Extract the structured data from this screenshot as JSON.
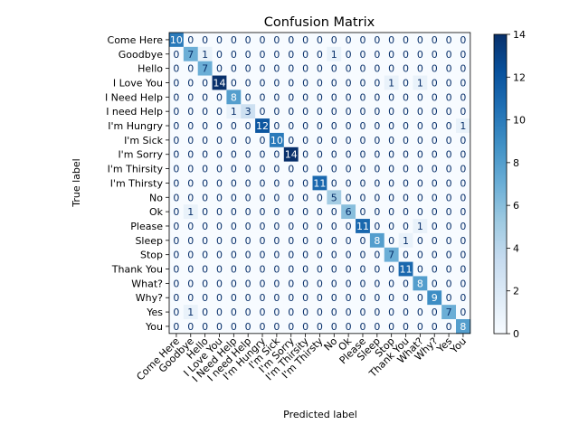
{
  "chart_data": {
    "type": "heatmap",
    "title": "Confusion Matrix",
    "xlabel": "Predicted label",
    "ylabel": "True label",
    "labels": [
      "Come Here",
      "Goodbye",
      "Hello",
      "I Love You",
      "I Need Help",
      "I need Help",
      "I'm Hungry",
      "I'm Sick",
      "I'm Sorry",
      "I'm Thirsity",
      "I'm Thirsty",
      "No",
      "Ok",
      "Please",
      "Sleep",
      "Stop",
      "Thank You",
      "What?",
      "Why?",
      "Yes",
      "You"
    ],
    "matrix": [
      [
        10,
        0,
        0,
        0,
        0,
        0,
        0,
        0,
        0,
        0,
        0,
        0,
        0,
        0,
        0,
        0,
        0,
        0,
        0,
        0,
        0
      ],
      [
        0,
        7,
        1,
        0,
        0,
        0,
        0,
        0,
        0,
        0,
        0,
        1,
        0,
        0,
        0,
        0,
        0,
        0,
        0,
        0,
        0
      ],
      [
        0,
        0,
        7,
        0,
        0,
        0,
        0,
        0,
        0,
        0,
        0,
        0,
        0,
        0,
        0,
        0,
        0,
        0,
        0,
        0,
        0
      ],
      [
        0,
        0,
        0,
        14,
        0,
        0,
        0,
        0,
        0,
        0,
        0,
        0,
        0,
        0,
        0,
        1,
        0,
        1,
        0,
        0,
        0
      ],
      [
        0,
        0,
        0,
        0,
        8,
        0,
        0,
        0,
        0,
        0,
        0,
        0,
        0,
        0,
        0,
        0,
        0,
        0,
        0,
        0,
        0
      ],
      [
        0,
        0,
        0,
        0,
        1,
        3,
        0,
        0,
        0,
        0,
        0,
        0,
        0,
        0,
        0,
        0,
        0,
        0,
        0,
        0,
        0
      ],
      [
        0,
        0,
        0,
        0,
        0,
        0,
        12,
        0,
        0,
        0,
        0,
        0,
        0,
        0,
        0,
        0,
        0,
        0,
        0,
        0,
        1
      ],
      [
        0,
        0,
        0,
        0,
        0,
        0,
        0,
        10,
        0,
        0,
        0,
        0,
        0,
        0,
        0,
        0,
        0,
        0,
        0,
        0,
        0
      ],
      [
        0,
        0,
        0,
        0,
        0,
        0,
        0,
        0,
        14,
        0,
        0,
        0,
        0,
        0,
        0,
        0,
        0,
        0,
        0,
        0,
        0
      ],
      [
        0,
        0,
        0,
        0,
        0,
        0,
        0,
        0,
        0,
        0,
        0,
        0,
        0,
        0,
        0,
        0,
        0,
        0,
        0,
        0,
        0
      ],
      [
        0,
        0,
        0,
        0,
        0,
        0,
        0,
        0,
        0,
        0,
        11,
        0,
        0,
        0,
        0,
        0,
        0,
        0,
        0,
        0,
        0
      ],
      [
        0,
        0,
        0,
        0,
        0,
        0,
        0,
        0,
        0,
        0,
        0,
        5,
        0,
        0,
        0,
        0,
        0,
        0,
        0,
        0,
        0
      ],
      [
        0,
        1,
        0,
        0,
        0,
        0,
        0,
        0,
        0,
        0,
        0,
        0,
        6,
        0,
        0,
        0,
        0,
        0,
        0,
        0,
        0
      ],
      [
        0,
        0,
        0,
        0,
        0,
        0,
        0,
        0,
        0,
        0,
        0,
        0,
        0,
        11,
        0,
        0,
        0,
        1,
        0,
        0,
        0
      ],
      [
        0,
        0,
        0,
        0,
        0,
        0,
        0,
        0,
        0,
        0,
        0,
        0,
        0,
        0,
        8,
        0,
        1,
        0,
        0,
        0,
        0
      ],
      [
        0,
        0,
        0,
        0,
        0,
        0,
        0,
        0,
        0,
        0,
        0,
        0,
        0,
        0,
        0,
        7,
        0,
        0,
        0,
        0,
        0
      ],
      [
        0,
        0,
        0,
        0,
        0,
        0,
        0,
        0,
        0,
        0,
        0,
        0,
        0,
        0,
        0,
        0,
        11,
        0,
        0,
        0,
        0
      ],
      [
        0,
        0,
        0,
        0,
        0,
        0,
        0,
        0,
        0,
        0,
        0,
        0,
        0,
        0,
        0,
        0,
        0,
        8,
        0,
        0,
        0
      ],
      [
        0,
        0,
        0,
        0,
        0,
        0,
        0,
        0,
        0,
        0,
        0,
        0,
        0,
        0,
        0,
        0,
        0,
        0,
        9,
        0,
        0
      ],
      [
        0,
        1,
        0,
        0,
        0,
        0,
        0,
        0,
        0,
        0,
        0,
        0,
        0,
        0,
        0,
        0,
        0,
        0,
        0,
        7,
        0
      ],
      [
        0,
        0,
        0,
        0,
        0,
        0,
        0,
        0,
        0,
        0,
        0,
        0,
        0,
        0,
        0,
        0,
        0,
        0,
        0,
        0,
        8
      ]
    ],
    "colorbar": {
      "min": 0,
      "max": 14,
      "ticks": [
        0,
        2,
        4,
        6,
        8,
        10,
        12,
        14
      ],
      "colormap": "Blues"
    },
    "grid": false,
    "legend": "colorbar-right"
  }
}
